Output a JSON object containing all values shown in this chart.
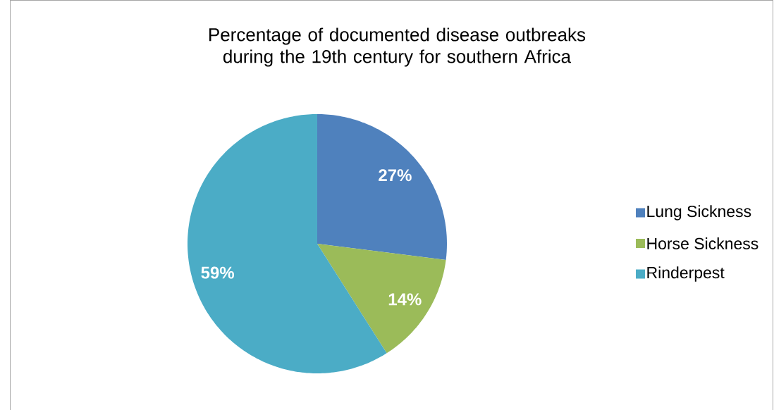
{
  "chart_data": {
    "type": "pie",
    "title": "Percentage of documented disease outbreaks during the 19th century for southern Africa",
    "categories": [
      "Lung Sickness",
      "Horse Sickness",
      "Rinderpest"
    ],
    "values": [
      27,
      14,
      59
    ],
    "colors": [
      "#4f81bd",
      "#9bbb59",
      "#4bacc6"
    ],
    "value_labels": [
      "27%",
      "14%",
      "59%"
    ],
    "legend": "right"
  }
}
